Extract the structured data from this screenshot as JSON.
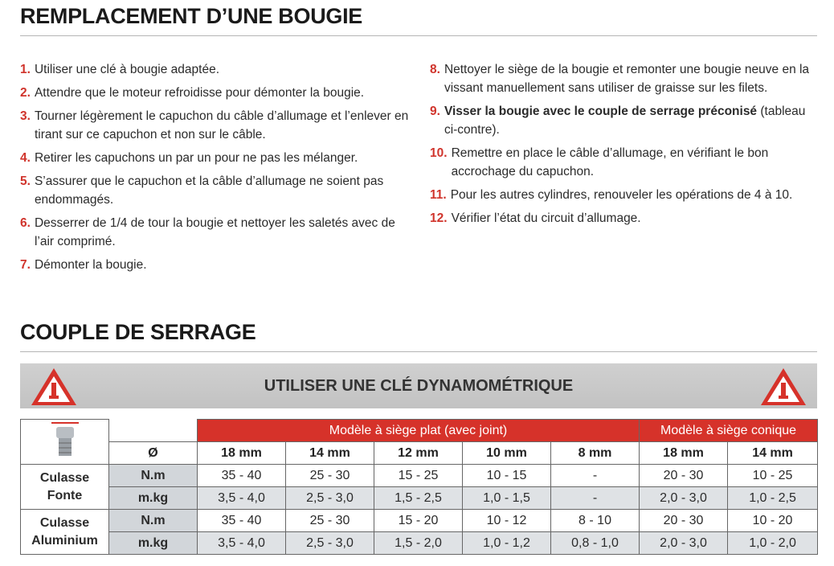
{
  "section1": {
    "title": "REMPLACEMENT D’UNE BOUGIE",
    "columns": [
      [
        {
          "number": "1.",
          "text": "Utiliser une clé à bougie adaptée."
        },
        {
          "number": "2.",
          "text": "Attendre que le moteur refroidisse pour démonter la bougie."
        },
        {
          "number": "3.",
          "text": "Tourner légèrement le capuchon du câble d’allumage et l’enlever en tirant sur ce capuchon et non sur le câble."
        },
        {
          "number": "4.",
          "text": "Retirer les capuchons un par un pour ne pas les mélanger."
        },
        {
          "number": "5.",
          "text": "S’assurer que le capuchon et la câble d’allumage ne soient pas endommagés."
        },
        {
          "number": "6.",
          "text": "Desserrer de 1/4 de tour la bougie et nettoyer les saletés avec de l’air comprimé."
        },
        {
          "number": "7.",
          "text": "Démonter la bougie."
        }
      ],
      [
        {
          "number": "8.",
          "text": "Nettoyer le siège de la bougie et remonter une bougie neuve en la vissant manuellement sans utiliser de graisse sur les filets."
        },
        {
          "number": "9.",
          "bold": "Visser la bougie avec le couple de serrage préconisé",
          "text": "(tableau ci-contre)."
        },
        {
          "number": "10.",
          "text": "Remettre en place le câble d’allumage, en vérifiant le bon accrochage du capuchon."
        },
        {
          "number": "11.",
          "text": "Pour les autres cylindres, renouveler les opérations de 4 à 10."
        },
        {
          "number": "12.",
          "text": "Vérifier l’état du circuit d’allumage."
        }
      ]
    ]
  },
  "section2": {
    "title": "COUPLE DE SERRAGE",
    "banner": "UTILISER UNE CLÉ DYNAMOMÉTRIQUE",
    "table": {
      "groups": [
        "Modèle à siège plat (avec joint)",
        "Modèle à siège conique"
      ],
      "diameter_label": "Ø",
      "sizes": [
        "18 mm",
        "14 mm",
        "12 mm",
        "10 mm",
        "8 mm",
        "18 mm",
        "14 mm"
      ],
      "blocks": [
        {
          "label": [
            "Culasse",
            "Fonte"
          ],
          "rows": [
            {
              "unit": "N.m",
              "values": [
                "35 - 40",
                "25 - 30",
                "15 - 25",
                "10 - 15",
                "-",
                "20 - 30",
                "10 - 25"
              ]
            },
            {
              "unit": "m.kg",
              "values": [
                "3,5 - 4,0",
                "2,5 - 3,0",
                "1,5 - 2,5",
                "1,0 - 1,5",
                "-",
                "2,0 - 3,0",
                "1,0 - 2,5"
              ]
            }
          ]
        },
        {
          "label": [
            "Culasse",
            "Aluminium"
          ],
          "rows": [
            {
              "unit": "N.m",
              "values": [
                "35 - 40",
                "25 - 30",
                "15 - 20",
                "10 - 12",
                "8 - 10",
                "20 - 30",
                "10 - 20"
              ]
            },
            {
              "unit": "m.kg",
              "values": [
                "3,5 - 4,0",
                "2,5 - 3,0",
                "1,5 - 2,0",
                "1,0 - 1,2",
                "0,8 - 1,0",
                "2,0 - 3,0",
                "1,0 - 2,0"
              ]
            }
          ]
        }
      ]
    }
  }
}
